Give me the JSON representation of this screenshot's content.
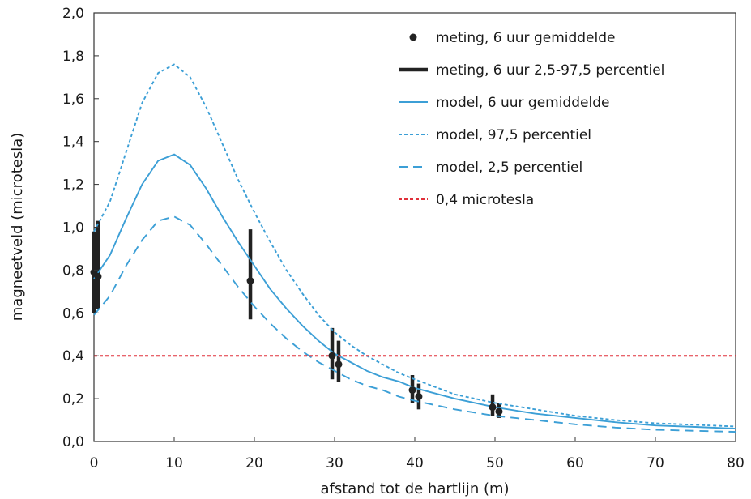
{
  "chart_data": {
    "type": "line",
    "xlabel": "afstand tot de hartlijn (m)",
    "ylabel": "magneetveld (microtesla)",
    "xlim": [
      0,
      80
    ],
    "ylim": [
      0,
      2.0
    ],
    "x_ticks": [
      "0",
      "10",
      "20",
      "30",
      "40",
      "50",
      "60",
      "70",
      "80"
    ],
    "y_ticks": [
      "0,0",
      "0,2",
      "0,4",
      "0,6",
      "0,8",
      "1,0",
      "1,2",
      "1,4",
      "1,6",
      "1,8",
      "2,0"
    ],
    "grid": false,
    "legend_position": "top-right",
    "series": [
      {
        "name": "meting, 6 uur gemiddelde",
        "kind": "points",
        "color": "#222222",
        "x": [
          0,
          0.5,
          19.5,
          29.7,
          30.5,
          39.7,
          40.5,
          49.7,
          50.5
        ],
        "y": [
          0.79,
          0.77,
          0.75,
          0.4,
          0.36,
          0.24,
          0.21,
          0.16,
          0.14
        ]
      },
      {
        "name": "meting, 6 uur 2,5-97,5 percentiel",
        "kind": "errorbars",
        "color": "#222222",
        "x": [
          0,
          0.5,
          19.5,
          29.7,
          30.5,
          39.7,
          40.5,
          49.7,
          50.5
        ],
        "low": [
          0.6,
          0.62,
          0.57,
          0.29,
          0.28,
          0.18,
          0.15,
          0.12,
          0.11
        ],
        "high": [
          0.98,
          1.03,
          0.99,
          0.53,
          0.47,
          0.31,
          0.27,
          0.22,
          0.18
        ]
      },
      {
        "name": "model, 6 uur gemiddelde",
        "kind": "line",
        "style": "solid",
        "color": "#3c9fd6",
        "x": [
          0,
          2,
          4,
          6,
          8,
          10,
          12,
          14,
          16,
          18,
          20,
          22,
          24,
          26,
          28,
          30,
          32,
          34,
          36,
          38,
          40,
          45,
          50,
          55,
          60,
          65,
          70,
          75,
          80
        ],
        "y": [
          0.76,
          0.87,
          1.04,
          1.2,
          1.31,
          1.34,
          1.29,
          1.18,
          1.05,
          0.93,
          0.82,
          0.71,
          0.62,
          0.54,
          0.47,
          0.41,
          0.37,
          0.33,
          0.3,
          0.28,
          0.25,
          0.2,
          0.16,
          0.13,
          0.11,
          0.09,
          0.075,
          0.068,
          0.06
        ]
      },
      {
        "name": "model, 97,5 percentiel",
        "kind": "line",
        "style": "dotted",
        "color": "#3c9fd6",
        "x": [
          0,
          2,
          4,
          6,
          8,
          10,
          12,
          14,
          16,
          18,
          20,
          22,
          24,
          26,
          28,
          30,
          32,
          34,
          36,
          38,
          40,
          45,
          50,
          55,
          60,
          65,
          70,
          75,
          80
        ],
        "y": [
          0.98,
          1.12,
          1.35,
          1.58,
          1.72,
          1.76,
          1.7,
          1.56,
          1.39,
          1.22,
          1.07,
          0.93,
          0.8,
          0.69,
          0.59,
          0.51,
          0.45,
          0.4,
          0.36,
          0.32,
          0.29,
          0.22,
          0.18,
          0.15,
          0.12,
          0.1,
          0.085,
          0.078,
          0.07
        ]
      },
      {
        "name": "model, 2,5 percentiel",
        "kind": "line",
        "style": "dashed",
        "color": "#3c9fd6",
        "x": [
          0,
          2,
          4,
          6,
          8,
          10,
          12,
          14,
          16,
          18,
          20,
          22,
          24,
          26,
          28,
          30,
          32,
          34,
          36,
          38,
          40,
          45,
          50,
          55,
          60,
          65,
          70,
          75,
          80
        ],
        "y": [
          0.59,
          0.68,
          0.82,
          0.94,
          1.03,
          1.05,
          1.01,
          0.92,
          0.82,
          0.72,
          0.63,
          0.55,
          0.48,
          0.42,
          0.37,
          0.33,
          0.29,
          0.26,
          0.24,
          0.21,
          0.19,
          0.15,
          0.12,
          0.1,
          0.08,
          0.065,
          0.055,
          0.05,
          0.045
        ]
      },
      {
        "name": "0,4 microtesla",
        "kind": "hline",
        "style": "dotted",
        "color": "#e0303a",
        "y": 0.4
      }
    ]
  }
}
